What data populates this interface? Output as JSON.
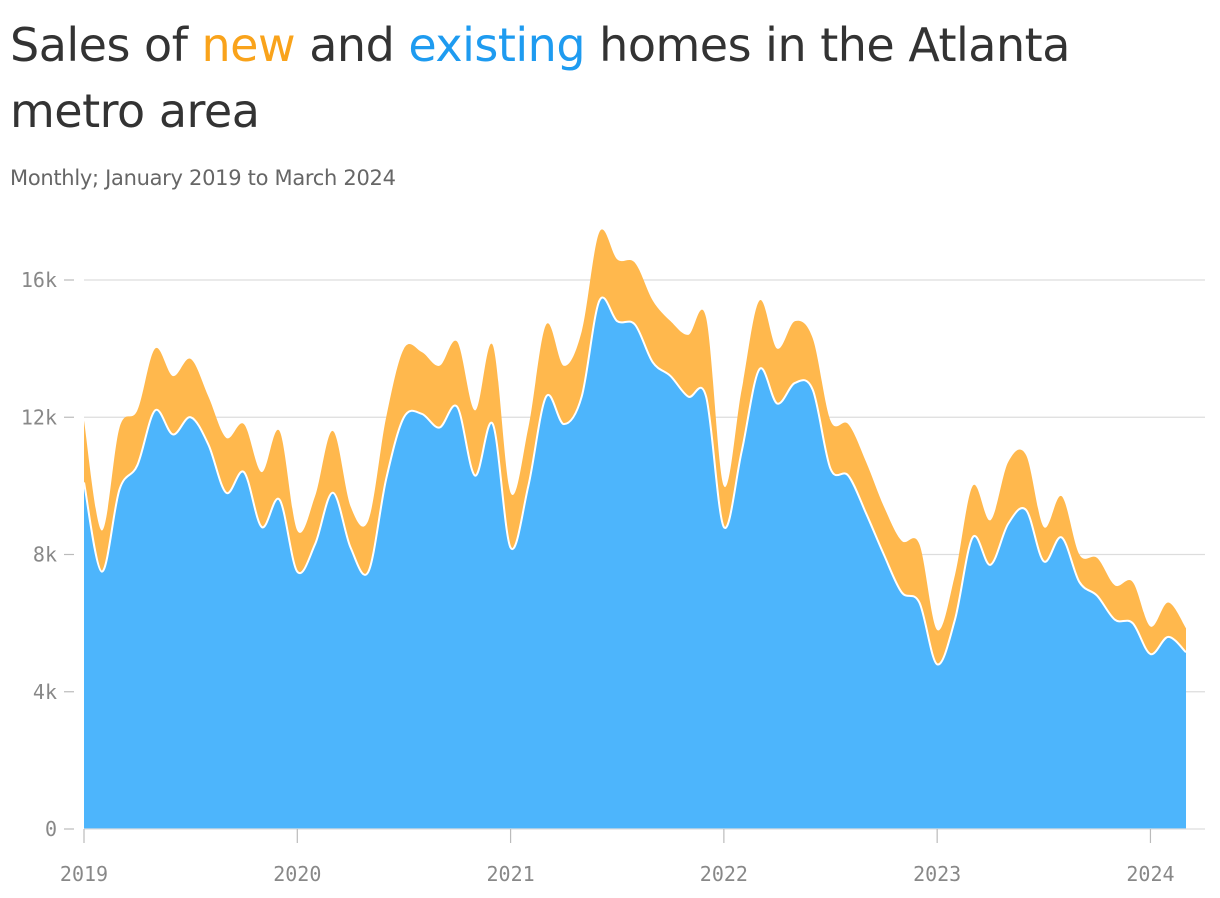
{
  "title": {
    "part1": "Sales of ",
    "new_word": "new",
    "part2": " and ",
    "existing_word": "existing",
    "part3": " homes in the Atlanta metro area"
  },
  "subtitle": "Monthly; January 2019 to March 2024",
  "colors": {
    "new": "#f9a31b",
    "new_area": "#ffb84d",
    "existing": "#1e9bf0",
    "existing_area": "#4db5fc",
    "grid": "#dddddd",
    "tick_text": "#888888"
  },
  "chart_data": {
    "type": "area",
    "stacked": true,
    "x_start": "2019-01",
    "x_end": "2024-03",
    "frequency": "monthly",
    "x_ticks": [
      "2019",
      "2020",
      "2021",
      "2022",
      "2023",
      "2024"
    ],
    "y_ticks": [
      "0",
      "4k",
      "8k",
      "12k",
      "16k"
    ],
    "y_tick_values": [
      0,
      4000,
      8000,
      12000,
      16000
    ],
    "ylim": [
      0,
      17500
    ],
    "grid": true,
    "series": [
      {
        "name": "existing",
        "values": [
          10100,
          7500,
          9900,
          10600,
          12200,
          11500,
          12000,
          11200,
          9800,
          10400,
          8800,
          9600,
          7500,
          8300,
          9800,
          8200,
          7500,
          10200,
          12000,
          12100,
          11700,
          12300,
          10300,
          11800,
          8200,
          10000,
          12600,
          11800,
          12600,
          15400,
          14800,
          14700,
          13600,
          13200,
          12600,
          12600,
          8800,
          11000,
          13400,
          12400,
          13000,
          12800,
          10500,
          10300,
          9200,
          8000,
          6900,
          6600,
          4800,
          6100,
          8500,
          7700,
          8900,
          9300,
          7800,
          8500,
          7200,
          6800,
          6100,
          6000,
          5100,
          5600,
          5150
        ]
      },
      {
        "name": "new",
        "values": [
          1800,
          1200,
          1800,
          1600,
          1800,
          1700,
          1700,
          1400,
          1600,
          1400,
          1600,
          2000,
          1200,
          1400,
          1800,
          1200,
          1500,
          1800,
          2000,
          1800,
          1800,
          1900,
          1900,
          2300,
          1600,
          1700,
          2100,
          1700,
          1900,
          2000,
          1800,
          1800,
          1800,
          1600,
          1800,
          2300,
          1200,
          1800,
          2000,
          1600,
          1800,
          1500,
          1400,
          1500,
          1500,
          1400,
          1500,
          1700,
          1000,
          1300,
          1500,
          1300,
          1800,
          1600,
          1000,
          1200,
          800,
          1100,
          1000,
          1200,
          800,
          1000,
          700
        ]
      }
    ]
  }
}
